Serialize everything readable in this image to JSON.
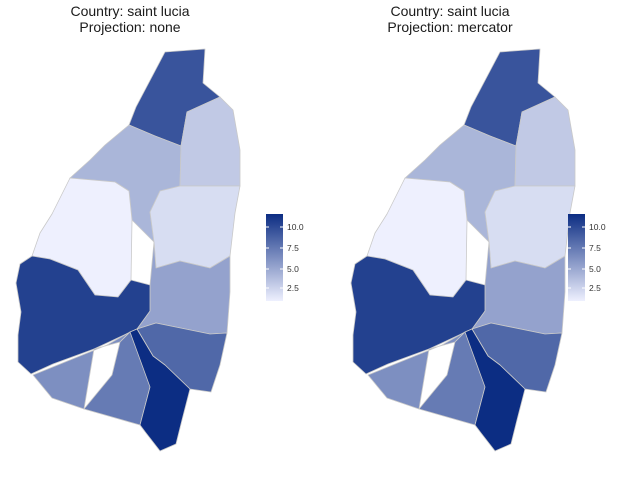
{
  "panels": [
    {
      "title_line1": "Country: saint lucia",
      "title_line2": "Projection: none"
    },
    {
      "title_line1": "Country: saint lucia",
      "title_line2": "Projection: mercator"
    }
  ],
  "legend": {
    "ticks": [
      "10.0",
      "7.5",
      "5.0",
      "2.5"
    ],
    "color_low": "#eef0fe",
    "color_high": "#0c2d83",
    "range": [
      1,
      11
    ]
  },
  "chart_data": {
    "type": "choropleth",
    "regions_count": 11,
    "region_values": [
      9,
      4,
      3,
      1,
      2,
      5,
      10,
      8,
      6,
      7,
      11
    ]
  }
}
